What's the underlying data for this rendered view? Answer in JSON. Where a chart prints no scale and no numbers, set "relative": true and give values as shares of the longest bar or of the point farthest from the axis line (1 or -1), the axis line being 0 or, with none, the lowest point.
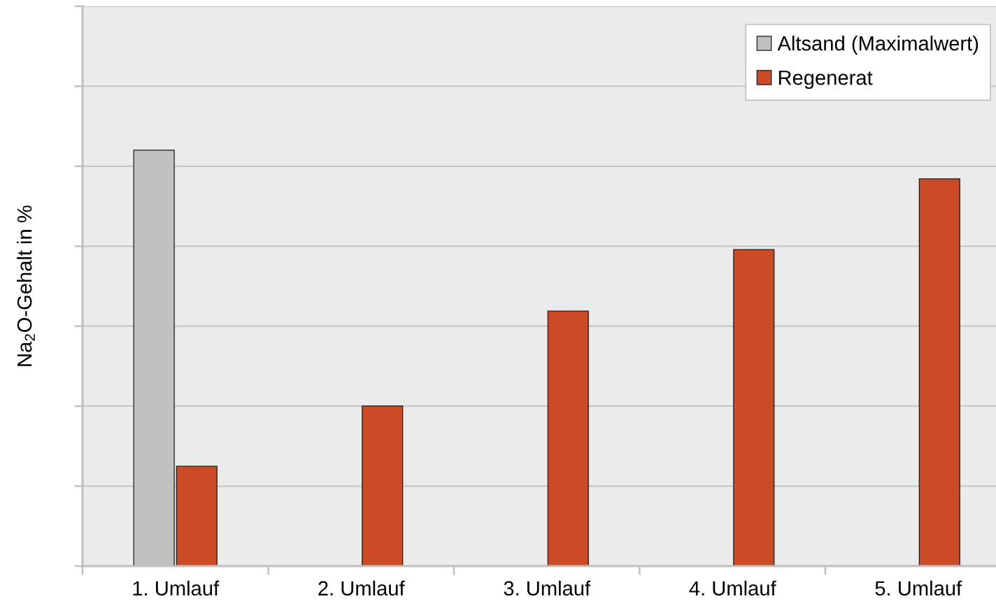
{
  "chart_data": {
    "type": "bar",
    "ylabel": "Na$_{2}$O-Gehalt in %",
    "categories": [
      "1. Umlauf",
      "2. Umlauf",
      "3. Umlauf",
      "4. Umlauf",
      "5. Umlauf"
    ],
    "relative": true,
    "series": [
      {
        "name": "Altsand (Maximalwert)",
        "color": "#c0c0c0",
        "values": [
          1,
          null,
          null,
          null,
          null
        ]
      },
      {
        "name": "Regenerat",
        "color": "#cc4a25",
        "values": [
          0.24,
          0.385,
          0.613,
          0.761,
          0.931
        ]
      }
    ],
    "grid": "y",
    "legend": "top right",
    "tick_labels": "x"
  }
}
